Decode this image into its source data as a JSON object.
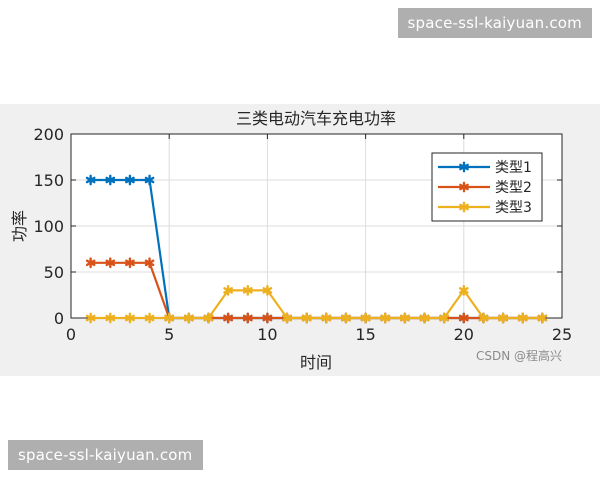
{
  "watermark_top": "space-ssl-kaiyuan.com",
  "watermark_bottom": "space-ssl-kaiyuan.com",
  "credit": "CSDN @程高兴",
  "chart_data": {
    "type": "line",
    "title": "三类电动汽车充电功率",
    "xlabel": "时间",
    "ylabel": "功率",
    "xlim": [
      0,
      25
    ],
    "ylim": [
      0,
      200
    ],
    "xticks": [
      0,
      5,
      10,
      15,
      20,
      25
    ],
    "yticks": [
      0,
      50,
      100,
      150,
      200
    ],
    "grid": true,
    "legend_position": "top-right",
    "marker": "asterisk",
    "x": [
      1,
      2,
      3,
      4,
      5,
      6,
      7,
      8,
      9,
      10,
      11,
      12,
      13,
      14,
      15,
      16,
      17,
      18,
      19,
      20,
      21,
      22,
      23,
      24
    ],
    "series": [
      {
        "name": "类型1",
        "color": "#0072bd",
        "values": [
          150,
          150,
          150,
          150,
          0,
          0,
          0,
          0,
          0,
          0,
          0,
          0,
          0,
          0,
          0,
          0,
          0,
          0,
          0,
          0,
          0,
          0,
          0,
          0
        ]
      },
      {
        "name": "类型2",
        "color": "#d95319",
        "values": [
          60,
          60,
          60,
          60,
          0,
          0,
          0,
          0,
          0,
          0,
          0,
          0,
          0,
          0,
          0,
          0,
          0,
          0,
          0,
          0,
          0,
          0,
          0,
          0
        ]
      },
      {
        "name": "类型3",
        "color": "#edb120",
        "values": [
          0,
          0,
          0,
          0,
          0,
          0,
          0,
          30,
          30,
          30,
          0,
          0,
          0,
          0,
          0,
          0,
          0,
          0,
          0,
          30,
          0,
          0,
          0,
          0
        ]
      }
    ]
  }
}
